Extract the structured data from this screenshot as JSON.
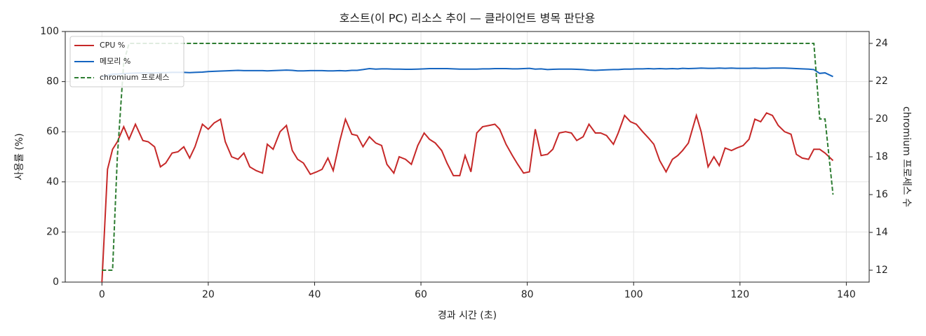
{
  "chart_data": {
    "type": "line",
    "title": "호스트(이 PC) 리소스 추이 — 클라이언트 병목 판단용",
    "xlabel": "경과 시간 (초)",
    "ylabel": "사용률 (%)",
    "y2label": "chromium 프로세스 수",
    "x": [
      0,
      1.05,
      2,
      2.9,
      4.1,
      5.1,
      6.3,
      7.7,
      8.7,
      9.9,
      11,
      12,
      13.2,
      14.3,
      15.4,
      16.5,
      17.5,
      18.9,
      20,
      21.1,
      22.3,
      23.2,
      24.4,
      25.6,
      26.7,
      27.8,
      29,
      30.2,
      31.1,
      32.2,
      33.5,
      34.7,
      35.8,
      36.8,
      37.9,
      39.2,
      40.4,
      41.4,
      42.5,
      43.5,
      44.7,
      45.8,
      47,
      48,
      49.1,
      50.3,
      51.5,
      52.6,
      53.6,
      54.9,
      55.9,
      57.1,
      58.2,
      59.4,
      60.6,
      61.6,
      62.7,
      63.9,
      64.9,
      66.1,
      67.3,
      68.3,
      69.4,
      70.5,
      71.6,
      72.8,
      73.9,
      74.8,
      76,
      77.2,
      78.2,
      79.3,
      80.4,
      81.5,
      82.6,
      83.8,
      84.8,
      86,
      87.2,
      88.3,
      89.3,
      90.5,
      91.6,
      92.8,
      93.8,
      94.9,
      96.2,
      97.1,
      98.3,
      99.4,
      100.5,
      101.7,
      102.8,
      103.8,
      104.9,
      106.1,
      107.3,
      108.3,
      109.2,
      110.3,
      111.8,
      112.7,
      114,
      115.1,
      116.1,
      117.2,
      118.4,
      119.4,
      120.6,
      121.7,
      122.8,
      123.9,
      125,
      126.1,
      127.2,
      128.4,
      129.6,
      130.6,
      131.7,
      132.9,
      133.9,
      135,
      136,
      137.5
    ],
    "series": [
      {
        "name": "CPU %",
        "color": "#c62828",
        "dash": false,
        "values": [
          0,
          45,
          53,
          56,
          62,
          57,
          63,
          56.5,
          56,
          54,
          46,
          47.5,
          51.5,
          52,
          54,
          49.5,
          54,
          63,
          61,
          63.5,
          65,
          56,
          50,
          49,
          51.5,
          46,
          44.5,
          43.5,
          55,
          53,
          60,
          62.5,
          52.5,
          49,
          47.5,
          43,
          44,
          45,
          49.5,
          44.5,
          56,
          65,
          59,
          58.5,
          54,
          58,
          55.5,
          54.5,
          47,
          43.5,
          50,
          49,
          47,
          54.5,
          59.5,
          57,
          55.5,
          52.5,
          47.5,
          42.5,
          42.5,
          50.5,
          44,
          59.5,
          62,
          62.5,
          63,
          61,
          55,
          50.5,
          47,
          43.5,
          44,
          61,
          50.5,
          51,
          53,
          59.5,
          60,
          59.5,
          56.5,
          58,
          63,
          59.5,
          59.5,
          58.5,
          55,
          59.5,
          66.5,
          64,
          63,
          60,
          57.5,
          55,
          48.5,
          44,
          49,
          50.5,
          52.5,
          55.5,
          66.5,
          60,
          46,
          50,
          46.5,
          53.5,
          52.5,
          53.5,
          54.5,
          57,
          65,
          64,
          67.5,
          66.5,
          62.5,
          60,
          59,
          51,
          49.5,
          49,
          53,
          53,
          51.5,
          48.5
        ]
      },
      {
        "name": "메모리 %",
        "color": "#1565c0",
        "dash": false,
        "values": [
          82,
          82.5,
          83,
          83,
          83.2,
          83.3,
          83.4,
          83.5,
          83.5,
          83.5,
          83.6,
          83.6,
          83.7,
          83.7,
          83.7,
          83.6,
          83.7,
          83.8,
          84,
          84.1,
          84.2,
          84.3,
          84.4,
          84.5,
          84.4,
          84.4,
          84.4,
          84.4,
          84.3,
          84.4,
          84.5,
          84.6,
          84.5,
          84.3,
          84.3,
          84.4,
          84.4,
          84.4,
          84.3,
          84.3,
          84.4,
          84.3,
          84.5,
          84.5,
          84.8,
          85.2,
          85,
          85.1,
          85.1,
          85,
          85,
          84.9,
          84.9,
          85,
          85.1,
          85.2,
          85.2,
          85.2,
          85.2,
          85.1,
          85,
          85,
          85,
          85,
          85.1,
          85.1,
          85.2,
          85.2,
          85.2,
          85.1,
          85.1,
          85.2,
          85.3,
          85,
          85.1,
          84.8,
          84.9,
          85,
          85,
          85,
          84.9,
          84.8,
          84.6,
          84.5,
          84.6,
          84.7,
          84.8,
          84.8,
          85,
          85,
          85.1,
          85.1,
          85.2,
          85.1,
          85.2,
          85.1,
          85.2,
          85.1,
          85.3,
          85.2,
          85.3,
          85.4,
          85.3,
          85.3,
          85.4,
          85.3,
          85.4,
          85.3,
          85.3,
          85.3,
          85.4,
          85.3,
          85.3,
          85.4,
          85.4,
          85.4,
          85.3,
          85.2,
          85.1,
          85,
          84.8,
          83.3,
          83.5,
          82
        ]
      },
      {
        "name": "chromium 프로세스",
        "color": "#2e7d32",
        "dash": true,
        "axis": "y2",
        "values": [
          12,
          12,
          12,
          18,
          23,
          24,
          24,
          24,
          24,
          24,
          24,
          24,
          24,
          24,
          24,
          24,
          24,
          24,
          24,
          24,
          24,
          24,
          24,
          24,
          24,
          24,
          24,
          24,
          24,
          24,
          24,
          24,
          24,
          24,
          24,
          24,
          24,
          24,
          24,
          24,
          24,
          24,
          24,
          24,
          24,
          24,
          24,
          24,
          24,
          24,
          24,
          24,
          24,
          24,
          24,
          24,
          24,
          24,
          24,
          24,
          24,
          24,
          24,
          24,
          24,
          24,
          24,
          24,
          24,
          24,
          24,
          24,
          24,
          24,
          24,
          24,
          24,
          24,
          24,
          24,
          24,
          24,
          24,
          24,
          24,
          24,
          24,
          24,
          24,
          24,
          24,
          24,
          24,
          24,
          24,
          24,
          24,
          24,
          24,
          24,
          24,
          24,
          24,
          24,
          24,
          24,
          24,
          24,
          24,
          24,
          24,
          24,
          24,
          24,
          24,
          24,
          24,
          24,
          24,
          24,
          24,
          20,
          20,
          16
        ]
      }
    ],
    "xlim": [
      -6.9,
      144.3
    ],
    "xticks": [
      0,
      20,
      40,
      60,
      80,
      100,
      120,
      140
    ],
    "ylim": [
      0,
      100
    ],
    "yticks": [
      0,
      20,
      40,
      60,
      80,
      100
    ],
    "y2lim": [
      11.37,
      24.63
    ],
    "y2ticks": [
      12,
      14,
      16,
      18,
      20,
      22,
      24
    ],
    "grid": true,
    "legend": "upper-left"
  }
}
